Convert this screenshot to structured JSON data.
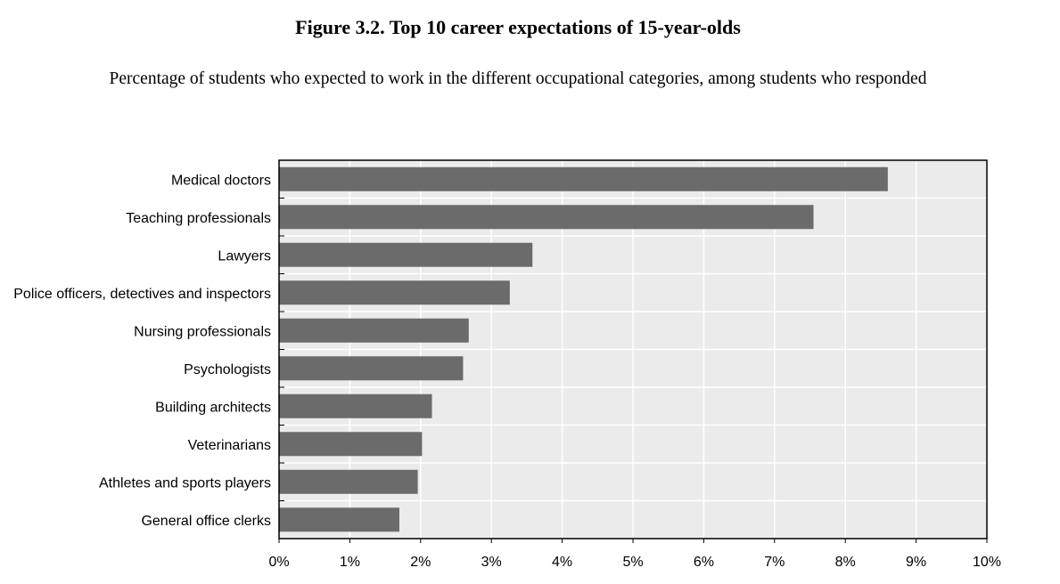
{
  "figure": {
    "title": "Figure 3.2. Top 10 career expectations of 15-year-olds",
    "subtitle": "Percentage of students who expected to work in the different occupational categories, among students who responded"
  },
  "chart_data": {
    "type": "bar",
    "orientation": "horizontal",
    "title": "Figure 3.2. Top 10 career expectations of 15-year-olds",
    "subtitle": "Percentage of students who expected to work in the different occupational categories, among students who responded",
    "categories": [
      "Medical doctors",
      "Teaching professionals",
      "Lawyers",
      "Police officers, detectives and inspectors",
      "Nursing professionals",
      "Psychologists",
      "Building architects",
      "Veterinarians",
      "Athletes and sports players",
      "General office clerks"
    ],
    "values": [
      8.6,
      7.55,
      3.58,
      3.26,
      2.68,
      2.6,
      2.16,
      2.02,
      1.96,
      1.7
    ],
    "xlim": [
      0,
      10
    ],
    "xticks": [
      "0%",
      "1%",
      "2%",
      "3%",
      "4%",
      "5%",
      "6%",
      "7%",
      "8%",
      "9%",
      "10%"
    ],
    "xlabel": "",
    "ylabel": "",
    "grid": true,
    "colors": {
      "bar": "#6b6b6b",
      "plot_background": "#ebebeb",
      "gridline": "#ffffff",
      "axis": "#000000"
    }
  }
}
